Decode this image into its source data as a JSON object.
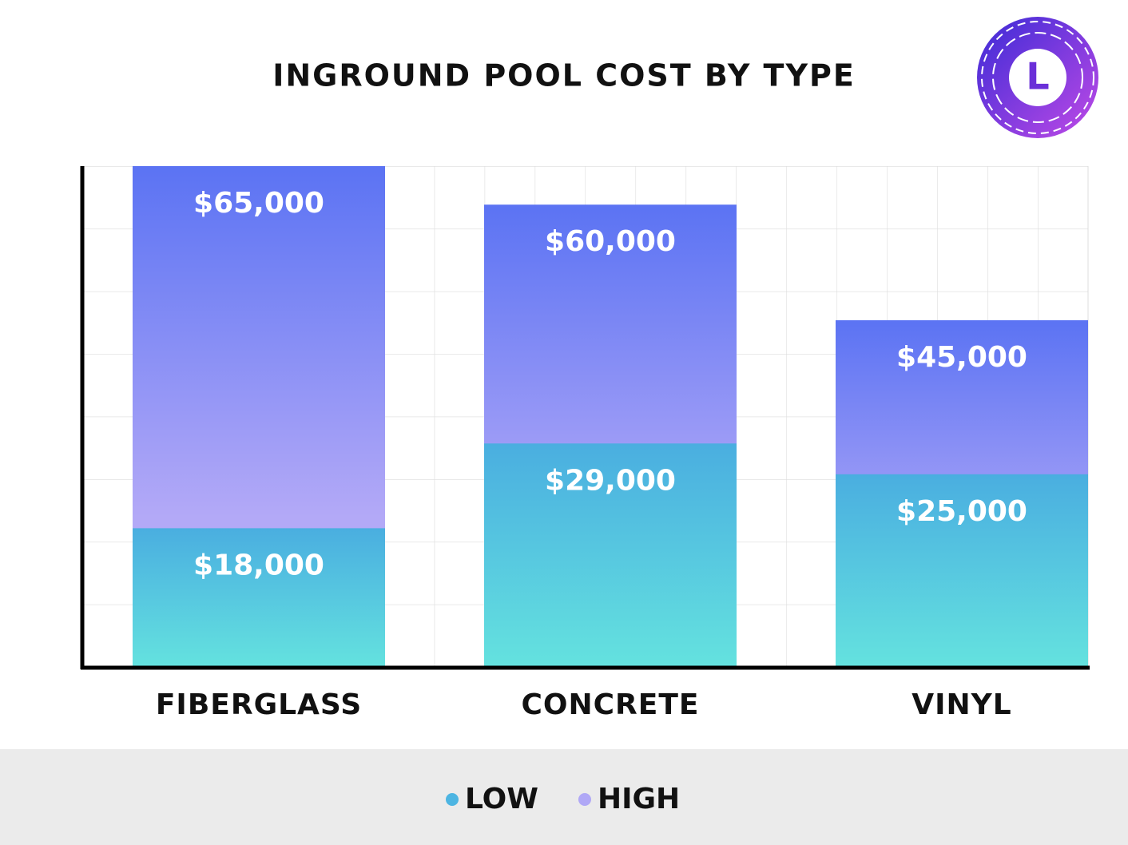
{
  "chart_data": {
    "type": "bar",
    "title": "INGROUND POOL COST BY TYPE",
    "logo": "L",
    "categories": [
      "FIBERGLASS",
      "CONCRETE",
      "VINYL"
    ],
    "series": [
      {
        "name": "HIGH",
        "color": "#b0a8f6",
        "values": [
          65000,
          60000,
          45000
        ],
        "value_labels": [
          "$65,000",
          "$60,000",
          "$45,000"
        ]
      },
      {
        "name": "LOW",
        "color": "#4db5e2",
        "values": [
          18000,
          29000,
          25000
        ],
        "value_labels": [
          "$18,000",
          "$29,000",
          "$25,000"
        ]
      }
    ],
    "legend_order": [
      "LOW",
      "HIGH"
    ],
    "ylim": [
      0,
      65000
    ],
    "grid": true
  }
}
